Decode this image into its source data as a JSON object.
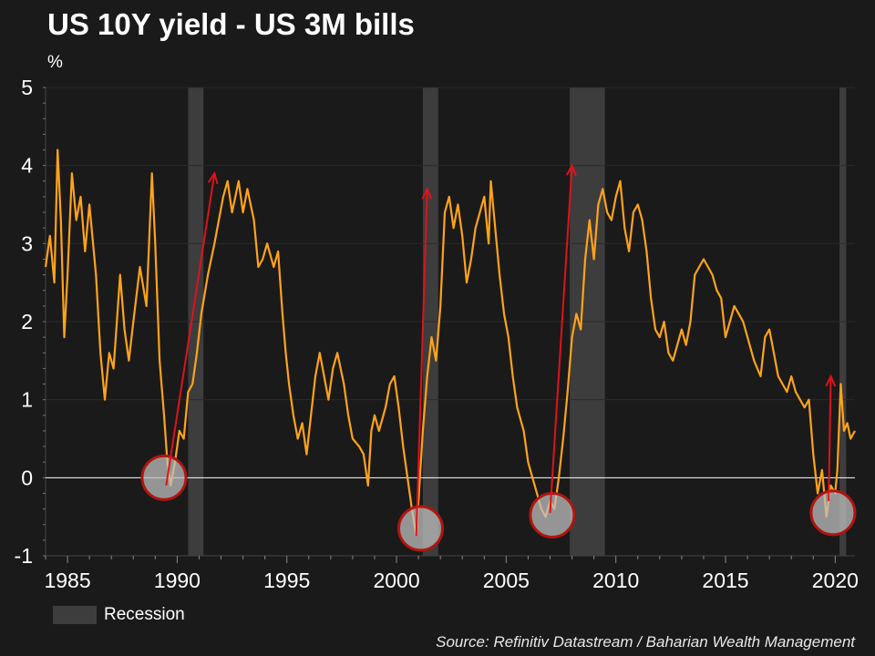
{
  "header": {
    "title": "US 10Y yield - US 3M bills",
    "unit": "%"
  },
  "legend": {
    "label": "Recession"
  },
  "source": "Source: Refinitiv Datastream / Baharian Wealth Management",
  "colors": {
    "background": "#1a1a1a",
    "line": "#ffa31a",
    "recession": "#3d3d3d",
    "circle_stroke": "#b0150f",
    "circle_fill": "#bfbfbf",
    "arrow": "#e0121a",
    "zero_line": "#ffffff",
    "text": "#ffffff"
  },
  "chart_data": {
    "type": "line",
    "title": "US 10Y yield - US 3M bills",
    "ylabel": "%",
    "xlabel": "",
    "xlim": [
      1984.0,
      2020.9
    ],
    "ylim": [
      -1,
      5
    ],
    "yticks": [
      5,
      4,
      3,
      2,
      1,
      0,
      -1
    ],
    "xticks": [
      1985,
      1990,
      1995,
      2000,
      2005,
      2010,
      2015,
      2020
    ],
    "grid": true,
    "legend_position": "bottom-left",
    "recessions": [
      [
        1990.5,
        1991.2
      ],
      [
        2001.2,
        2001.9
      ],
      [
        2007.9,
        2009.5
      ],
      [
        2020.2,
        2020.5
      ]
    ],
    "series": [
      {
        "points": [
          [
            1984.0,
            2.7
          ],
          [
            1984.2,
            3.1
          ],
          [
            1984.4,
            2.5
          ],
          [
            1984.55,
            4.2
          ],
          [
            1984.7,
            3.3
          ],
          [
            1984.85,
            1.8
          ],
          [
            1985.0,
            2.6
          ],
          [
            1985.2,
            3.9
          ],
          [
            1985.4,
            3.3
          ],
          [
            1985.6,
            3.6
          ],
          [
            1985.8,
            2.9
          ],
          [
            1986.0,
            3.5
          ],
          [
            1986.3,
            2.6
          ],
          [
            1986.5,
            1.6
          ],
          [
            1986.7,
            1.0
          ],
          [
            1986.9,
            1.6
          ],
          [
            1987.1,
            1.4
          ],
          [
            1987.4,
            2.6
          ],
          [
            1987.6,
            1.9
          ],
          [
            1987.8,
            1.5
          ],
          [
            1988.0,
            2.0
          ],
          [
            1988.3,
            2.7
          ],
          [
            1988.6,
            2.2
          ],
          [
            1988.85,
            3.9
          ],
          [
            1989.0,
            3.0
          ],
          [
            1989.2,
            1.5
          ],
          [
            1989.4,
            0.8
          ],
          [
            1989.55,
            0.2
          ],
          [
            1989.7,
            -0.1
          ],
          [
            1989.9,
            0.2
          ],
          [
            1990.1,
            0.6
          ],
          [
            1990.3,
            0.5
          ],
          [
            1990.5,
            1.1
          ],
          [
            1990.7,
            1.2
          ],
          [
            1990.9,
            1.6
          ],
          [
            1991.1,
            2.1
          ],
          [
            1991.4,
            2.6
          ],
          [
            1991.7,
            3.0
          ],
          [
            1991.9,
            3.3
          ],
          [
            1992.1,
            3.6
          ],
          [
            1992.3,
            3.8
          ],
          [
            1992.5,
            3.4
          ],
          [
            1992.8,
            3.8
          ],
          [
            1993.0,
            3.4
          ],
          [
            1993.2,
            3.7
          ],
          [
            1993.5,
            3.3
          ],
          [
            1993.7,
            2.7
          ],
          [
            1993.9,
            2.8
          ],
          [
            1994.1,
            3.0
          ],
          [
            1994.4,
            2.7
          ],
          [
            1994.6,
            2.9
          ],
          [
            1994.8,
            2.1
          ],
          [
            1994.95,
            1.6
          ],
          [
            1995.1,
            1.2
          ],
          [
            1995.3,
            0.8
          ],
          [
            1995.5,
            0.5
          ],
          [
            1995.7,
            0.7
          ],
          [
            1995.9,
            0.3
          ],
          [
            1996.1,
            0.8
          ],
          [
            1996.3,
            1.3
          ],
          [
            1996.5,
            1.6
          ],
          [
            1996.7,
            1.3
          ],
          [
            1996.9,
            1.0
          ],
          [
            1997.1,
            1.4
          ],
          [
            1997.3,
            1.6
          ],
          [
            1997.6,
            1.2
          ],
          [
            1997.8,
            0.8
          ],
          [
            1998.0,
            0.5
          ],
          [
            1998.3,
            0.4
          ],
          [
            1998.5,
            0.3
          ],
          [
            1998.7,
            -0.1
          ],
          [
            1998.85,
            0.6
          ],
          [
            1999.0,
            0.8
          ],
          [
            1999.2,
            0.6
          ],
          [
            1999.5,
            0.9
          ],
          [
            1999.7,
            1.2
          ],
          [
            1999.9,
            1.3
          ],
          [
            2000.1,
            0.9
          ],
          [
            2000.3,
            0.4
          ],
          [
            2000.5,
            0.0
          ],
          [
            2000.7,
            -0.4
          ],
          [
            2000.9,
            -0.75
          ],
          [
            2001.0,
            -0.3
          ],
          [
            2001.2,
            0.6
          ],
          [
            2001.4,
            1.3
          ],
          [
            2001.6,
            1.8
          ],
          [
            2001.8,
            1.5
          ],
          [
            2002.0,
            2.2
          ],
          [
            2002.2,
            3.4
          ],
          [
            2002.4,
            3.6
          ],
          [
            2002.6,
            3.2
          ],
          [
            2002.8,
            3.5
          ],
          [
            2003.0,
            3.1
          ],
          [
            2003.2,
            2.5
          ],
          [
            2003.4,
            2.8
          ],
          [
            2003.6,
            3.2
          ],
          [
            2003.8,
            3.4
          ],
          [
            2004.0,
            3.6
          ],
          [
            2004.2,
            3.0
          ],
          [
            2004.3,
            3.8
          ],
          [
            2004.5,
            3.2
          ],
          [
            2004.7,
            2.6
          ],
          [
            2004.9,
            2.1
          ],
          [
            2005.1,
            1.8
          ],
          [
            2005.3,
            1.3
          ],
          [
            2005.5,
            0.9
          ],
          [
            2005.8,
            0.6
          ],
          [
            2006.0,
            0.2
          ],
          [
            2006.2,
            0.0
          ],
          [
            2006.4,
            -0.2
          ],
          [
            2006.6,
            -0.4
          ],
          [
            2006.8,
            -0.5
          ],
          [
            2007.0,
            -0.3
          ],
          [
            2007.2,
            -0.4
          ],
          [
            2007.4,
            0.0
          ],
          [
            2007.6,
            0.5
          ],
          [
            2007.8,
            1.1
          ],
          [
            2008.0,
            1.8
          ],
          [
            2008.2,
            2.1
          ],
          [
            2008.4,
            1.9
          ],
          [
            2008.6,
            2.8
          ],
          [
            2008.8,
            3.3
          ],
          [
            2009.0,
            2.8
          ],
          [
            2009.2,
            3.5
          ],
          [
            2009.4,
            3.7
          ],
          [
            2009.6,
            3.4
          ],
          [
            2009.8,
            3.3
          ],
          [
            2010.0,
            3.6
          ],
          [
            2010.2,
            3.8
          ],
          [
            2010.4,
            3.2
          ],
          [
            2010.6,
            2.9
          ],
          [
            2010.8,
            3.4
          ],
          [
            2011.0,
            3.5
          ],
          [
            2011.2,
            3.3
          ],
          [
            2011.4,
            2.9
          ],
          [
            2011.6,
            2.3
          ],
          [
            2011.8,
            1.9
          ],
          [
            2012.0,
            1.8
          ],
          [
            2012.2,
            2.0
          ],
          [
            2012.4,
            1.6
          ],
          [
            2012.6,
            1.5
          ],
          [
            2012.8,
            1.7
          ],
          [
            2013.0,
            1.9
          ],
          [
            2013.2,
            1.7
          ],
          [
            2013.4,
            2.0
          ],
          [
            2013.6,
            2.6
          ],
          [
            2013.8,
            2.7
          ],
          [
            2014.0,
            2.8
          ],
          [
            2014.2,
            2.7
          ],
          [
            2014.4,
            2.6
          ],
          [
            2014.6,
            2.4
          ],
          [
            2014.8,
            2.3
          ],
          [
            2015.0,
            1.8
          ],
          [
            2015.2,
            2.0
          ],
          [
            2015.4,
            2.2
          ],
          [
            2015.6,
            2.1
          ],
          [
            2015.8,
            2.0
          ],
          [
            2016.0,
            1.8
          ],
          [
            2016.3,
            1.5
          ],
          [
            2016.6,
            1.3
          ],
          [
            2016.8,
            1.8
          ],
          [
            2017.0,
            1.9
          ],
          [
            2017.2,
            1.6
          ],
          [
            2017.4,
            1.3
          ],
          [
            2017.6,
            1.2
          ],
          [
            2017.8,
            1.1
          ],
          [
            2018.0,
            1.3
          ],
          [
            2018.2,
            1.1
          ],
          [
            2018.4,
            1.0
          ],
          [
            2018.6,
            0.9
          ],
          [
            2018.8,
            1.0
          ],
          [
            2019.0,
            0.3
          ],
          [
            2019.2,
            -0.2
          ],
          [
            2019.4,
            0.1
          ],
          [
            2019.6,
            -0.5
          ],
          [
            2019.8,
            -0.1
          ],
          [
            2020.0,
            -0.2
          ],
          [
            2020.1,
            0.1
          ],
          [
            2020.25,
            1.2
          ],
          [
            2020.4,
            0.6
          ],
          [
            2020.55,
            0.7
          ],
          [
            2020.7,
            0.5
          ],
          [
            2020.9,
            0.6
          ]
        ]
      }
    ],
    "annotations": {
      "circles": [
        {
          "x": 1989.4,
          "y": 0.0
        },
        {
          "x": 2001.1,
          "y": -0.65
        },
        {
          "x": 2007.1,
          "y": -0.48
        },
        {
          "x": 2019.9,
          "y": -0.45
        }
      ],
      "arrows": [
        {
          "from": [
            1989.5,
            -0.1
          ],
          "to": [
            1991.7,
            3.9
          ]
        },
        {
          "from": [
            2000.9,
            -0.75
          ],
          "to": [
            2001.4,
            3.7
          ]
        },
        {
          "from": [
            2007.0,
            -0.45
          ],
          "to": [
            2008.0,
            4.0
          ]
        },
        {
          "from": [
            2019.7,
            -0.3
          ],
          "to": [
            2019.8,
            1.3
          ]
        }
      ]
    }
  }
}
